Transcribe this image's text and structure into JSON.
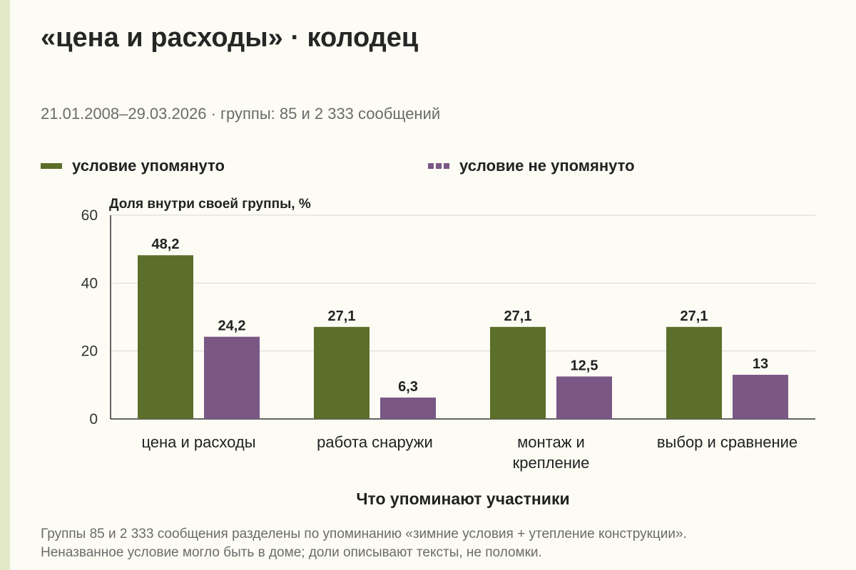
{
  "title": "«цена и расходы» · колодец",
  "subtitle": "21.01.2008–29.03.2026 · группы: 85 и 2 333 сообщений",
  "footnote": "Группы 85 и 2 333 сообщения разделены по упоминанию «зимние условия + утепление конструкции». Неназванное условие могло быть в доме; доли описывают тексты, не поломки.",
  "colors": {
    "mentioned": "#5b6e2a",
    "not_mentioned": "#7a5785",
    "grid": "#d9d9d3",
    "axis": "#333333",
    "background": "#fcfbf4",
    "stripe": "#e3e8c6"
  },
  "chart_data": {
    "type": "bar",
    "title": "",
    "ylabel": "Доля внутри своей группы, %",
    "xlabel": "Что упоминают участники",
    "ylim": [
      0,
      60
    ],
    "yticks": [
      0,
      20,
      40,
      60
    ],
    "grid": true,
    "legend_placement": "top",
    "categories": [
      [
        "цена и расходы"
      ],
      [
        "работа снаружи"
      ],
      [
        "монтаж и",
        "крепление"
      ],
      [
        "выбор и сравнение"
      ]
    ],
    "series": [
      {
        "name": "условие упомянуто",
        "values": [
          48.2,
          27.1,
          27.1,
          27.1
        ],
        "labels": [
          "48,2",
          "27,1",
          "27,1",
          "27,1"
        ],
        "style": "solid"
      },
      {
        "name": "условие не упомянуто",
        "values": [
          24.2,
          6.3,
          12.5,
          13
        ],
        "labels": [
          "24,2",
          "6,3",
          "12,5",
          "13"
        ],
        "style": "dashed"
      }
    ]
  }
}
